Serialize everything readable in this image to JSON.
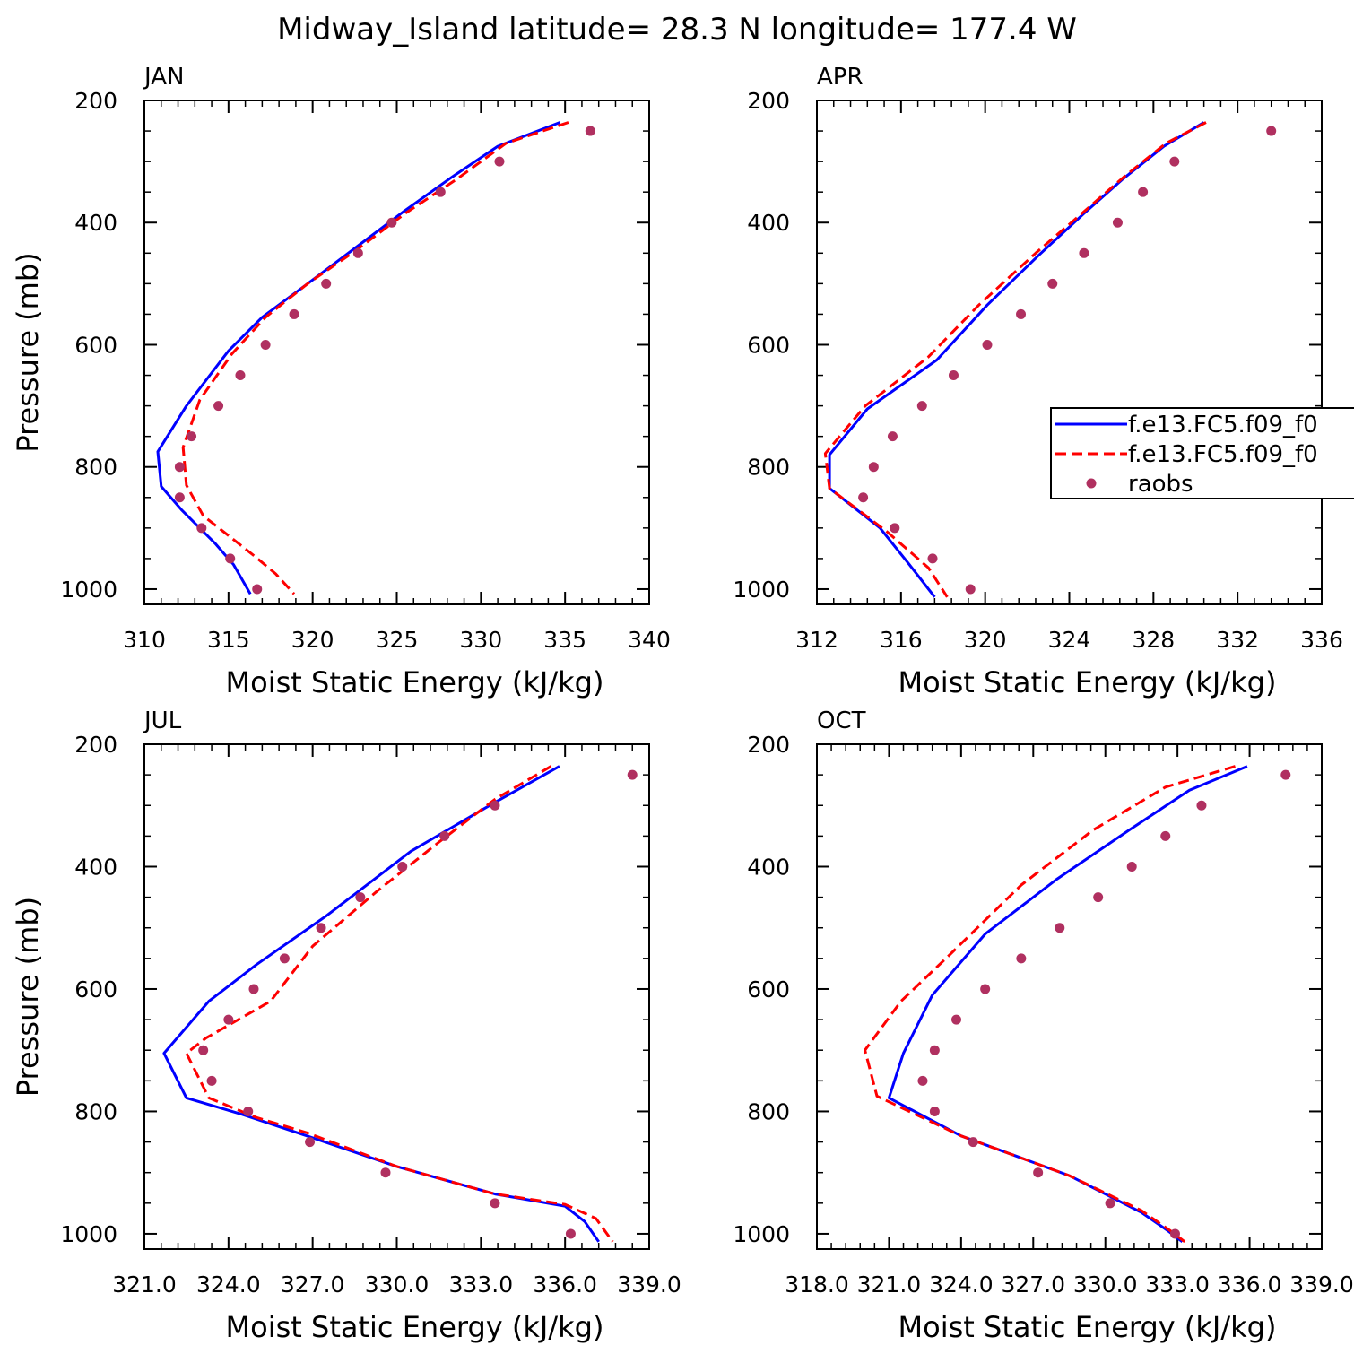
{
  "title": "Midway_Island  latitude= 28.3 N longitude= 177.4 W",
  "legend": {
    "entries": [
      {
        "label": "f.e13.FC5.f09_f0",
        "style": "solid",
        "color": "#0000ff"
      },
      {
        "label": "f.e13.FC5.f09_f0",
        "style": "dashed",
        "color": "#ff0000"
      },
      {
        "label": "raobs",
        "style": "dots",
        "color": "#b03060"
      }
    ]
  },
  "chart_data": [
    {
      "type": "line",
      "panel": "JAN",
      "xlabel": "Moist Static Energy (kJ/kg)",
      "ylabel": "Pressure (mb)",
      "xlim": [
        310,
        340
      ],
      "ylim": [
        1025,
        200
      ],
      "xticks": [
        310,
        315,
        320,
        325,
        330,
        335,
        340
      ],
      "xtick_labels": [
        "310",
        "315",
        "320",
        "325",
        "330",
        "335",
        "340"
      ],
      "yticks": [
        200,
        400,
        600,
        800,
        1000
      ],
      "ytick_labels": [
        "200",
        "400",
        "600",
        "800",
        "1000"
      ],
      "series": [
        {
          "name": "f.e13.FC5.f09_f0",
          "style": "solid",
          "color": "#0000ff",
          "x": [
            334.7,
            331.0,
            328.3,
            325.5,
            322.6,
            319.7,
            317.0,
            315.0,
            312.5,
            310.8,
            311.0,
            312.2,
            314.2,
            315.3,
            316.3
          ],
          "y": [
            236,
            275,
            325,
            380,
            440,
            500,
            555,
            610,
            700,
            775,
            832,
            870,
            925,
            960,
            1008
          ]
        },
        {
          "name": "f.e13.FC5.f09_f0",
          "style": "dashed",
          "color": "#ff0000",
          "x": [
            335.2,
            331.5,
            328.5,
            325.5,
            322.6,
            319.7,
            317.2,
            315.2,
            313.3,
            312.3,
            312.5,
            313.5,
            316.5,
            317.8,
            318.9
          ],
          "y": [
            236,
            270,
            330,
            385,
            445,
            500,
            555,
            615,
            690,
            768,
            830,
            880,
            945,
            975,
            1008
          ]
        },
        {
          "name": "raobs",
          "style": "dots",
          "color": "#b03060",
          "x": [
            336.5,
            331.1,
            327.6,
            324.7,
            322.7,
            320.8,
            318.9,
            317.2,
            315.7,
            314.4,
            312.8,
            312.1,
            312.1,
            313.4,
            315.1,
            316.7
          ],
          "y": [
            250,
            300,
            350,
            400,
            450,
            500,
            550,
            600,
            650,
            700,
            750,
            800,
            850,
            900,
            950,
            1000
          ]
        }
      ]
    },
    {
      "type": "line",
      "panel": "APR",
      "xlabel": "Moist Static Energy (kJ/kg)",
      "ylabel": "",
      "xlim": [
        312,
        336
      ],
      "ylim": [
        1025,
        200
      ],
      "xticks": [
        312,
        316,
        320,
        324,
        328,
        332,
        336
      ],
      "xtick_labels": [
        "312",
        "316",
        "320",
        "324",
        "328",
        "332",
        "336"
      ],
      "yticks": [
        200,
        400,
        600,
        800,
        1000
      ],
      "ytick_labels": [
        "200",
        "400",
        "600",
        "800",
        "1000"
      ],
      "series": [
        {
          "name": "f.e13.FC5.f09_f0",
          "style": "solid",
          "color": "#0000ff",
          "x": [
            330.4,
            328.5,
            326.5,
            324.7,
            322.5,
            320.1,
            317.7,
            314.4,
            312.6,
            312.6,
            315.0,
            316.4,
            317.6
          ],
          "y": [
            236,
            275,
            330,
            385,
            455,
            535,
            625,
            705,
            780,
            835,
            900,
            960,
            1013
          ]
        },
        {
          "name": "f.e13.FC5.f09_f0",
          "style": "dashed",
          "color": "#ff0000",
          "x": [
            330.5,
            328.6,
            326.6,
            324.6,
            322.4,
            319.7,
            317.3,
            314.3,
            312.4,
            312.6,
            315.3,
            317.3,
            318.2
          ],
          "y": [
            236,
            270,
            325,
            385,
            450,
            535,
            620,
            700,
            778,
            835,
            905,
            965,
            1013
          ]
        },
        {
          "name": "raobs",
          "style": "dots",
          "color": "#b03060",
          "x": [
            333.6,
            329.0,
            327.5,
            326.3,
            324.7,
            323.2,
            321.7,
            320.1,
            318.5,
            317.0,
            315.6,
            314.7,
            314.2,
            315.7,
            317.5,
            319.3
          ],
          "y": [
            250,
            300,
            350,
            400,
            450,
            500,
            550,
            600,
            650,
            700,
            750,
            800,
            850,
            900,
            950,
            1000
          ]
        }
      ]
    },
    {
      "type": "line",
      "panel": "JUL",
      "xlabel": "Moist Static Energy (kJ/kg)",
      "ylabel": "Pressure (mb)",
      "xlim": [
        321,
        339
      ],
      "ylim": [
        1025,
        200
      ],
      "xticks": [
        321,
        324,
        327,
        330,
        333,
        336,
        339
      ],
      "xtick_labels": [
        "321.0",
        "324.0",
        "327.0",
        "330.0",
        "333.0",
        "336.0",
        "339.0"
      ],
      "yticks": [
        200,
        400,
        600,
        800,
        1000
      ],
      "ytick_labels": [
        "200",
        "400",
        "600",
        "800",
        "1000"
      ],
      "series": [
        {
          "name": "f.e13.FC5.f09_f0",
          "style": "solid",
          "color": "#0000ff",
          "x": [
            335.8,
            333.5,
            330.5,
            327.5,
            325.0,
            323.3,
            321.7,
            322.5,
            324.5,
            326.8,
            330.0,
            333.5,
            336.0,
            336.7,
            337.2
          ],
          "y": [
            236,
            295,
            375,
            480,
            560,
            620,
            705,
            778,
            805,
            840,
            890,
            935,
            955,
            980,
            1013
          ]
        },
        {
          "name": "f.e13.FC5.f09_f0",
          "style": "dashed",
          "color": "#ff0000",
          "x": [
            335.5,
            333.5,
            331.5,
            329.3,
            327.0,
            325.5,
            323.2,
            322.5,
            323.3,
            325.0,
            326.8,
            330.0,
            333.5,
            336.0,
            337.1,
            337.7
          ],
          "y": [
            236,
            290,
            360,
            440,
            530,
            620,
            680,
            705,
            778,
            810,
            835,
            890,
            935,
            952,
            975,
            1013
          ]
        },
        {
          "name": "raobs",
          "style": "dots",
          "color": "#b03060",
          "x": [
            338.4,
            333.5,
            331.7,
            330.2,
            328.7,
            327.3,
            326.0,
            324.9,
            324.0,
            323.1,
            323.4,
            324.7,
            326.9,
            329.6,
            333.5,
            336.2
          ],
          "y": [
            250,
            300,
            350,
            400,
            450,
            500,
            550,
            600,
            650,
            700,
            750,
            800,
            850,
            900,
            950,
            1000
          ]
        }
      ]
    },
    {
      "type": "line",
      "panel": "OCT",
      "xlabel": "Moist Static Energy (kJ/kg)",
      "ylabel": "",
      "xlim": [
        318,
        339
      ],
      "ylim": [
        1025,
        200
      ],
      "xticks": [
        318,
        321,
        324,
        327,
        330,
        333,
        336,
        339
      ],
      "xtick_labels": [
        "318.0",
        "321.0",
        "324.0",
        "327.0",
        "330.0",
        "333.0",
        "336.0",
        "339.0"
      ],
      "yticks": [
        200,
        400,
        600,
        800,
        1000
      ],
      "ytick_labels": [
        "200",
        "400",
        "600",
        "800",
        "1000"
      ],
      "series": [
        {
          "name": "f.e13.FC5.f09_f0",
          "style": "solid",
          "color": "#0000ff",
          "x": [
            335.9,
            333.5,
            331.0,
            328.0,
            325.0,
            322.8,
            321.6,
            321.0,
            324.0,
            328.5,
            331.5,
            332.6,
            333.2
          ],
          "y": [
            236,
            275,
            340,
            420,
            510,
            610,
            705,
            778,
            840,
            905,
            965,
            995,
            1013
          ]
        },
        {
          "name": "f.e13.FC5.f09_f0",
          "style": "dashed",
          "color": "#ff0000",
          "x": [
            335.4,
            332.5,
            329.5,
            326.5,
            323.5,
            321.5,
            320.0,
            320.5,
            324.0,
            328.5,
            331.5,
            332.7,
            333.3
          ],
          "y": [
            236,
            270,
            340,
            430,
            545,
            620,
            700,
            775,
            840,
            905,
            962,
            995,
            1013
          ]
        },
        {
          "name": "raobs",
          "style": "dots",
          "color": "#b03060",
          "x": [
            337.5,
            334.0,
            332.5,
            331.1,
            329.7,
            328.1,
            326.5,
            325.0,
            323.8,
            322.9,
            322.4,
            322.9,
            324.5,
            327.2,
            330.2,
            332.9
          ],
          "y": [
            250,
            300,
            350,
            400,
            450,
            500,
            550,
            600,
            650,
            700,
            750,
            800,
            850,
            900,
            950,
            1000
          ]
        }
      ]
    }
  ]
}
